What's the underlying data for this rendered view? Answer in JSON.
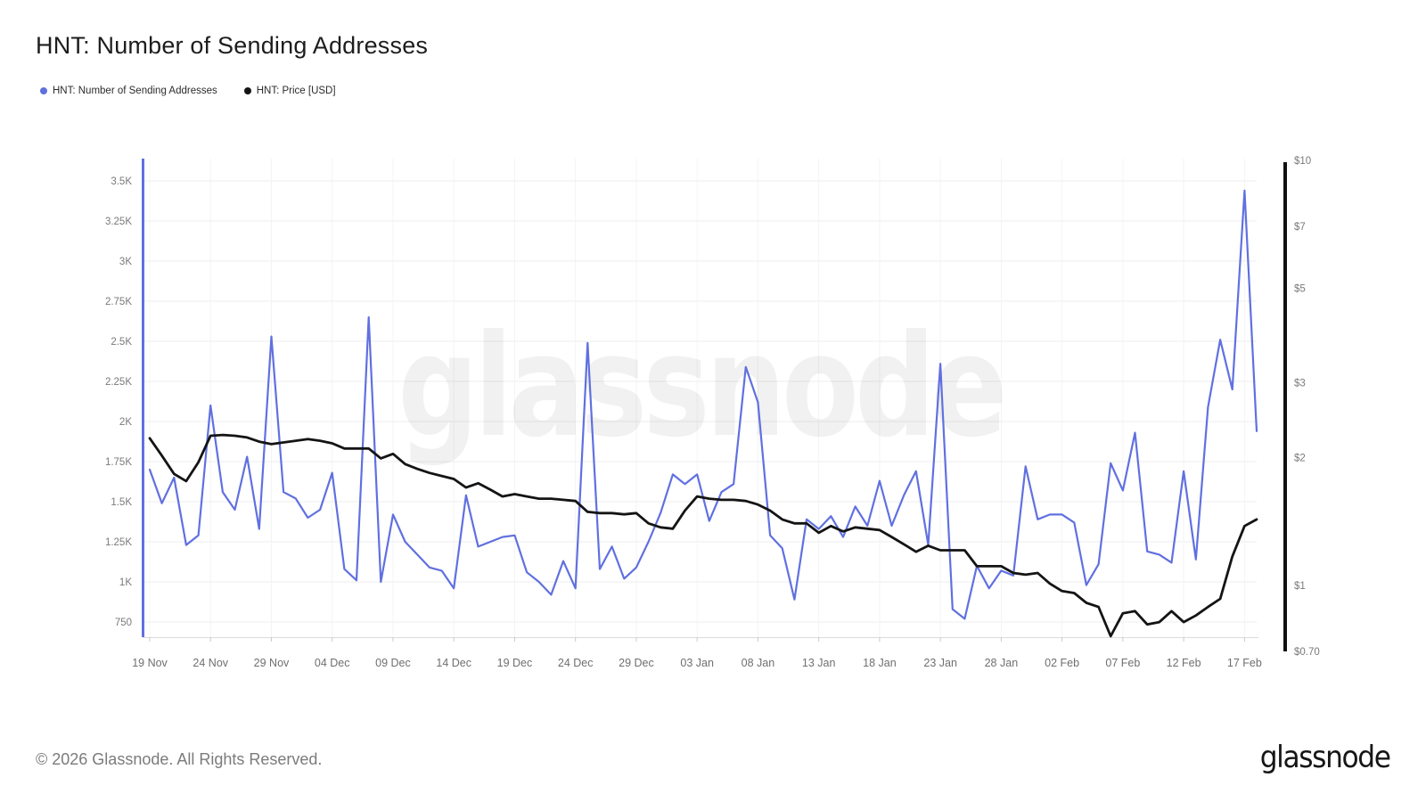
{
  "header": {
    "title": "HNT: Number of Sending Addresses"
  },
  "legend": {
    "items": [
      {
        "label": "HNT: Number of Sending Addresses",
        "color": "#6070e0"
      },
      {
        "label": "HNT: Price [USD]",
        "color": "#141414"
      }
    ]
  },
  "watermark": "glassnode",
  "footer": {
    "copyright": "© 2026 Glassnode. All Rights Reserved.",
    "brand": "glassnode"
  },
  "chart_data": {
    "type": "line",
    "title": "HNT: Number of Sending Addresses",
    "x_start_label": "19 Nov",
    "x_end_label": "17 Feb",
    "x_tick_step_days": 5,
    "x_tick_labels": [
      "19 Nov",
      "24 Nov",
      "29 Nov",
      "04 Dec",
      "09 Dec",
      "14 Dec",
      "19 Dec",
      "24 Dec",
      "29 Dec",
      "03 Jan",
      "08 Jan",
      "13 Jan",
      "18 Jan",
      "23 Jan",
      "28 Jan",
      "02 Feb",
      "07 Feb",
      "12 Feb",
      "17 Feb"
    ],
    "left_axis": {
      "scale": "linear",
      "unit": "addresses",
      "ticks": [
        {
          "label": "3.5K",
          "value": 3500
        },
        {
          "label": "3.25K",
          "value": 3250
        },
        {
          "label": "3K",
          "value": 3000
        },
        {
          "label": "2.75K",
          "value": 2750
        },
        {
          "label": "2.5K",
          "value": 2500
        },
        {
          "label": "2.25K",
          "value": 2250
        },
        {
          "label": "2K",
          "value": 2000
        },
        {
          "label": "1.75K",
          "value": 1750
        },
        {
          "label": "1.5K",
          "value": 1500
        },
        {
          "label": "1.25K",
          "value": 1250
        },
        {
          "label": "1K",
          "value": 1000
        },
        {
          "label": "750",
          "value": 750
        }
      ]
    },
    "right_axis": {
      "scale": "log",
      "unit": "USD",
      "ticks": [
        {
          "label": "$10",
          "value": 10
        },
        {
          "label": "$7",
          "value": 7
        },
        {
          "label": "$5",
          "value": 5
        },
        {
          "label": "$3",
          "value": 3
        },
        {
          "label": "$2",
          "value": 2
        },
        {
          "label": "$1",
          "value": 1
        },
        {
          "label": "$0.70",
          "value": 0.7
        }
      ]
    },
    "series": [
      {
        "name": "HNT: Number of Sending Addresses",
        "axis": "left",
        "color": "#6070e0",
        "width": 2.2,
        "values": [
          1700,
          1490,
          1650,
          1230,
          1290,
          2100,
          1560,
          1450,
          1780,
          1330,
          2530,
          1560,
          1520,
          1400,
          1450,
          1680,
          1080,
          1010,
          2650,
          1000,
          1420,
          1250,
          1170,
          1090,
          1070,
          960,
          1540,
          1220,
          1250,
          1280,
          1290,
          1060,
          1000,
          920,
          1130,
          960,
          2490,
          1080,
          1220,
          1020,
          1090,
          1250,
          1430,
          1670,
          1610,
          1670,
          1380,
          1560,
          1610,
          2340,
          2120,
          1290,
          1210,
          890,
          1390,
          1330,
          1410,
          1280,
          1470,
          1350,
          1630,
          1350,
          1540,
          1690,
          1230,
          2360,
          830,
          770,
          1100,
          960,
          1070,
          1040,
          1720,
          1390,
          1420,
          1420,
          1370,
          980,
          1110,
          1740,
          1570,
          1930,
          1190,
          1170,
          1120,
          1690,
          1140,
          2090,
          2510,
          2200,
          3440,
          1940
        ]
      },
      {
        "name": "HNT: Price [USD]",
        "axis": "right",
        "color": "#141414",
        "width": 2.8,
        "values": [
          2.22,
          2.02,
          1.83,
          1.76,
          1.95,
          2.25,
          2.26,
          2.25,
          2.23,
          2.18,
          2.15,
          2.17,
          2.19,
          2.21,
          2.19,
          2.16,
          2.1,
          2.1,
          2.1,
          1.99,
          2.04,
          1.93,
          1.88,
          1.84,
          1.81,
          1.78,
          1.7,
          1.74,
          1.68,
          1.62,
          1.64,
          1.62,
          1.6,
          1.6,
          1.59,
          1.58,
          1.49,
          1.48,
          1.48,
          1.47,
          1.48,
          1.4,
          1.37,
          1.36,
          1.5,
          1.62,
          1.6,
          1.59,
          1.59,
          1.58,
          1.55,
          1.5,
          1.43,
          1.4,
          1.4,
          1.33,
          1.38,
          1.34,
          1.37,
          1.36,
          1.35,
          1.3,
          1.25,
          1.2,
          1.24,
          1.21,
          1.21,
          1.21,
          1.11,
          1.11,
          1.11,
          1.07,
          1.06,
          1.07,
          1.01,
          0.97,
          0.96,
          0.91,
          0.89,
          0.76,
          0.86,
          0.87,
          0.81,
          0.82,
          0.87,
          0.82,
          0.85,
          0.89,
          0.93,
          1.17,
          1.38,
          1.43
        ]
      }
    ],
    "layout": {
      "grid": true,
      "legend_position": "top-left",
      "watermark_visible": true
    }
  }
}
